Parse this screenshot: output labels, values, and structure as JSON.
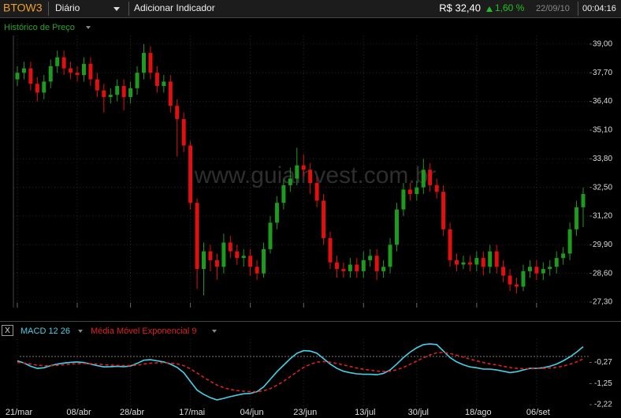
{
  "header": {
    "symbol": "BTOW3",
    "period": "Diário",
    "add_indicator": "Adicionar Indicador",
    "price": "R$ 32,40",
    "change": "1,60 %",
    "date": "22/09/10",
    "time": "00:04:16",
    "panel_close": "X"
  },
  "chart_data": [
    {
      "type": "candlestick",
      "title": "Histórico de Preço",
      "watermark": "www.guiainvest.com.br",
      "up_color": "#1e9a1e",
      "down_color": "#e01010",
      "open": [
        37.4,
        37.7,
        37.9,
        37.2,
        36.8,
        37.3,
        38.0,
        38.4,
        37.9,
        37.7,
        37.6,
        38.1,
        37.4,
        36.9,
        36.6,
        36.7,
        37.1,
        36.6,
        37.0,
        37.7,
        38.6,
        37.7,
        37.1,
        37.3,
        36.2,
        35.6,
        34.4,
        31.8,
        28.8,
        29.6,
        29.2,
        28.9,
        30.0,
        29.6,
        29.3,
        29.4,
        28.9,
        28.6,
        29.7,
        30.9,
        31.8,
        32.6,
        32.9,
        33.5,
        33.3,
        32.7,
        31.9,
        30.2,
        29.1,
        28.8,
        28.7,
        29.0,
        28.7,
        29.2,
        29.4,
        28.7,
        28.9,
        29.9,
        31.5,
        32.4,
        32.2,
        32.5,
        33.3,
        32.6,
        32.3,
        30.6,
        29.2,
        29.0,
        29.1,
        29.0,
        29.3,
        28.9,
        29.6,
        28.9,
        28.5,
        28.1,
        28.0,
        28.7,
        28.9,
        28.6,
        28.8,
        28.9,
        29.3,
        29.5,
        30.6,
        31.6
      ],
      "high": [
        38.0,
        38.2,
        38.2,
        37.5,
        37.6,
        38.3,
        38.7,
        38.7,
        38.2,
        38.0,
        38.4,
        38.4,
        37.7,
        37.2,
        37.0,
        37.4,
        37.4,
        37.3,
        38.0,
        39.0,
        38.9,
        38.0,
        37.6,
        37.6,
        36.5,
        35.9,
        34.6,
        32.0,
        30.0,
        29.9,
        29.5,
        30.4,
        30.3,
        29.9,
        29.7,
        29.7,
        29.2,
        30.0,
        31.2,
        32.1,
        32.9,
        33.4,
        34.3,
        34.0,
        33.6,
        33.0,
        32.2,
        30.5,
        29.4,
        29.1,
        29.3,
        29.3,
        29.6,
        29.7,
        29.7,
        29.2,
        30.2,
        31.8,
        32.7,
        32.7,
        32.8,
        33.8,
        33.6,
        32.9,
        32.6,
        30.9,
        29.5,
        29.4,
        29.4,
        29.6,
        29.6,
        29.9,
        29.9,
        29.2,
        28.8,
        28.4,
        29.0,
        29.2,
        29.2,
        29.1,
        29.2,
        29.6,
        29.8,
        30.9,
        31.9,
        32.5
      ],
      "low": [
        37.1,
        37.4,
        36.9,
        36.4,
        36.5,
        37.0,
        37.7,
        37.6,
        37.4,
        37.3,
        37.3,
        37.1,
        36.6,
        35.9,
        36.3,
        36.4,
        36.0,
        36.3,
        36.7,
        37.4,
        37.4,
        36.8,
        36.8,
        35.9,
        33.9,
        34.1,
        31.5,
        27.9,
        27.6,
        28.7,
        28.3,
        28.6,
        29.3,
        29.0,
        28.9,
        28.5,
        28.3,
        28.4,
        29.5,
        30.6,
        31.5,
        32.3,
        32.6,
        33.0,
        32.2,
        31.6,
        29.9,
        28.8,
        28.4,
        28.4,
        28.4,
        28.4,
        28.4,
        28.9,
        28.3,
        28.4,
        28.6,
        29.6,
        31.2,
        31.9,
        31.9,
        32.2,
        32.3,
        32.0,
        30.3,
        28.9,
        28.7,
        28.8,
        28.7,
        28.7,
        28.5,
        28.6,
        28.6,
        28.2,
        27.8,
        27.7,
        27.8,
        28.4,
        28.3,
        28.3,
        28.5,
        28.6,
        29.0,
        29.2,
        30.3,
        30.7
      ],
      "close": [
        37.7,
        37.9,
        37.2,
        36.8,
        37.3,
        38.0,
        38.4,
        37.9,
        37.7,
        37.6,
        38.1,
        37.4,
        36.9,
        36.6,
        36.7,
        37.1,
        36.6,
        37.0,
        37.7,
        38.6,
        37.7,
        37.1,
        37.3,
        36.2,
        35.6,
        34.4,
        31.8,
        28.8,
        29.6,
        29.2,
        28.9,
        30.0,
        29.6,
        29.3,
        29.4,
        28.9,
        28.6,
        29.7,
        30.9,
        31.8,
        32.6,
        32.9,
        33.5,
        33.3,
        32.7,
        31.9,
        30.2,
        29.1,
        28.8,
        28.7,
        29.0,
        28.7,
        29.2,
        29.4,
        28.7,
        28.9,
        29.9,
        31.5,
        32.4,
        32.2,
        32.5,
        33.3,
        32.6,
        32.3,
        30.6,
        29.2,
        29.0,
        29.1,
        29.0,
        29.3,
        28.9,
        29.6,
        28.9,
        28.5,
        28.1,
        28.0,
        28.7,
        28.9,
        28.6,
        28.8,
        28.9,
        29.3,
        29.5,
        30.6,
        31.6,
        32.2
      ],
      "ylim": [
        27.05,
        39.39
      ],
      "yticks": [
        {
          "value": 39,
          "label": "39,00"
        },
        {
          "value": 37.7,
          "label": "37,70"
        },
        {
          "value": 36.4,
          "label": "36,40"
        },
        {
          "value": 35.1,
          "label": "35,10"
        },
        {
          "value": 33.8,
          "label": "33,80"
        },
        {
          "value": 32.5,
          "label": "32,50"
        },
        {
          "value": 31.2,
          "label": "31,20"
        },
        {
          "value": 29.9,
          "label": "29,90"
        },
        {
          "value": 28.6,
          "label": "28,60"
        },
        {
          "value": 27.3,
          "label": "27,30"
        }
      ],
      "grid": true
    },
    {
      "type": "line",
      "series": [
        {
          "name": "MACD 12 26",
          "color": "#45d2e8",
          "dashed": false,
          "values": [
            -0.2,
            -0.3,
            -0.45,
            -0.55,
            -0.52,
            -0.42,
            -0.35,
            -0.3,
            -0.27,
            -0.25,
            -0.28,
            -0.35,
            -0.42,
            -0.48,
            -0.47,
            -0.45,
            -0.47,
            -0.44,
            -0.32,
            -0.17,
            -0.15,
            -0.2,
            -0.25,
            -0.35,
            -0.5,
            -0.75,
            -1.15,
            -1.55,
            -1.75,
            -1.9,
            -2.0,
            -1.93,
            -1.85,
            -1.78,
            -1.72,
            -1.7,
            -1.62,
            -1.4,
            -1.05,
            -0.7,
            -0.4,
            -0.1,
            0.15,
            0.27,
            0.25,
            0.15,
            -0.1,
            -0.35,
            -0.55,
            -0.68,
            -0.75,
            -0.8,
            -0.82,
            -0.82,
            -0.84,
            -0.78,
            -0.62,
            -0.35,
            -0.05,
            0.2,
            0.4,
            0.55,
            0.58,
            0.55,
            0.25,
            -0.05,
            -0.25,
            -0.38,
            -0.48,
            -0.52,
            -0.58,
            -0.58,
            -0.62,
            -0.68,
            -0.74,
            -0.7,
            -0.62,
            -0.55,
            -0.55,
            -0.52,
            -0.45,
            -0.35,
            -0.2,
            -0.02,
            0.2,
            0.45
          ]
        },
        {
          "name": "Média Móvel Exponencial 9",
          "color": "#e02020",
          "dashed": true,
          "values": [
            -0.27,
            -0.3,
            -0.35,
            -0.4,
            -0.43,
            -0.43,
            -0.41,
            -0.38,
            -0.35,
            -0.33,
            -0.32,
            -0.33,
            -0.35,
            -0.38,
            -0.4,
            -0.41,
            -0.42,
            -0.42,
            -0.4,
            -0.35,
            -0.31,
            -0.29,
            -0.28,
            -0.3,
            -0.34,
            -0.42,
            -0.57,
            -0.76,
            -0.96,
            -1.15,
            -1.32,
            -1.44,
            -1.52,
            -1.57,
            -1.6,
            -1.62,
            -1.62,
            -1.58,
            -1.48,
            -1.33,
            -1.14,
            -0.93,
            -0.71,
            -0.51,
            -0.36,
            -0.26,
            -0.23,
            -0.26,
            -0.32,
            -0.39,
            -0.46,
            -0.53,
            -0.59,
            -0.63,
            -0.67,
            -0.69,
            -0.68,
            -0.61,
            -0.5,
            -0.36,
            -0.21,
            -0.06,
            0.07,
            0.17,
            0.19,
            0.14,
            0.06,
            -0.03,
            -0.12,
            -0.2,
            -0.28,
            -0.34,
            -0.39,
            -0.45,
            -0.51,
            -0.55,
            -0.56,
            -0.56,
            -0.56,
            -0.55,
            -0.53,
            -0.5,
            -0.44,
            -0.36,
            -0.25,
            -0.11
          ]
        }
      ],
      "ylim": [
        -2.29,
        0.8
      ],
      "yticks": [
        {
          "value": -0.27,
          "label": "-0,27"
        },
        {
          "value": -1.25,
          "label": "-1,25"
        },
        {
          "value": -2.22,
          "label": "-2,22"
        }
      ],
      "xticks": [
        {
          "value": 0,
          "label": "21/mar"
        },
        {
          "value": 9,
          "label": "08/abr"
        },
        {
          "value": 17,
          "label": "28/abr"
        },
        {
          "value": 26,
          "label": "17/mai"
        },
        {
          "value": 35,
          "label": "04/jun"
        },
        {
          "value": 43,
          "label": "23/jun"
        },
        {
          "value": 52,
          "label": "13/jul"
        },
        {
          "value": 60,
          "label": "30/jul"
        },
        {
          "value": 69,
          "label": "18/ago"
        },
        {
          "value": 78,
          "label": "06/set"
        }
      ]
    }
  ]
}
